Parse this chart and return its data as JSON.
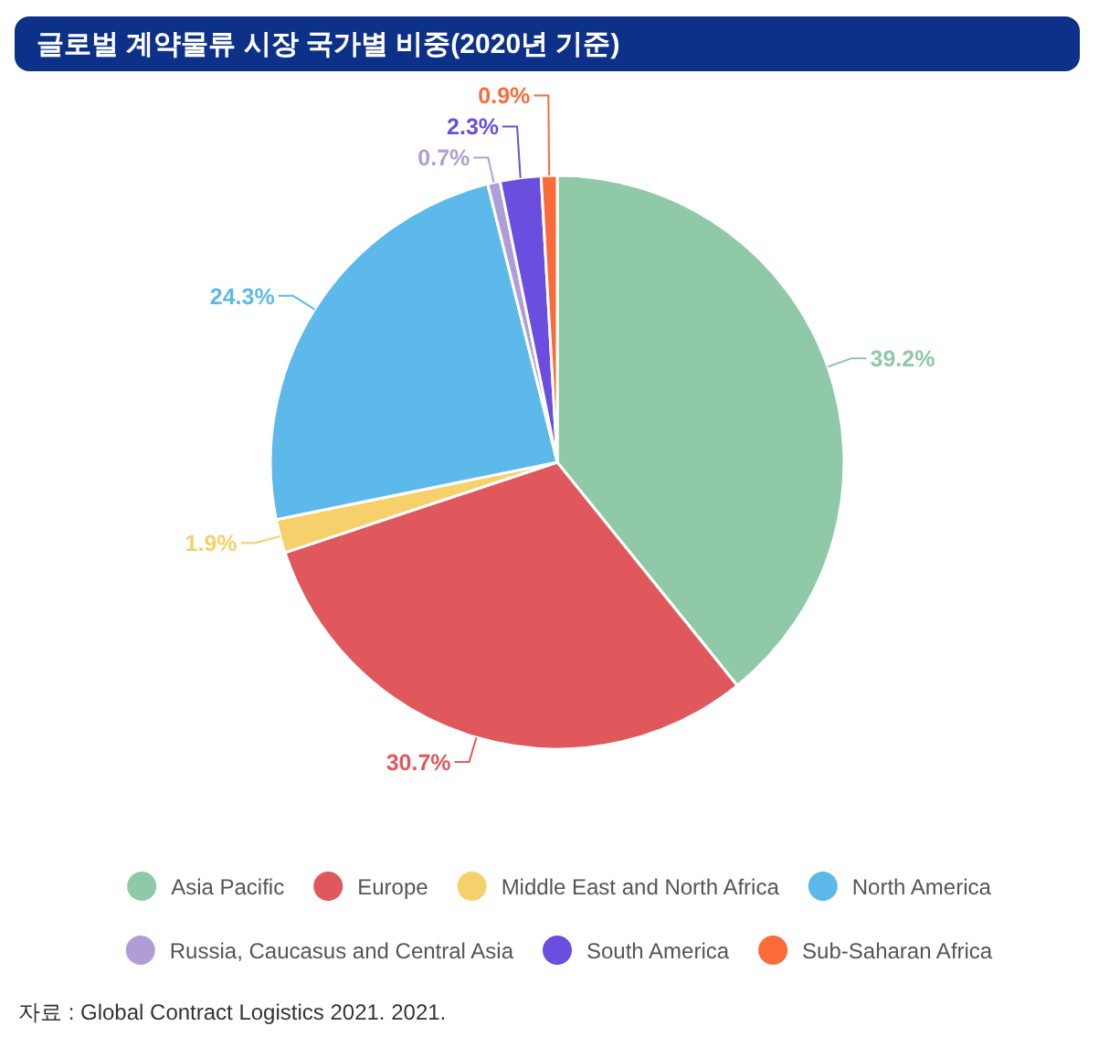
{
  "chart_data": {
    "type": "pie",
    "title": "글로벌 계약물류 시장 국가별 비중(2020년 기준)",
    "categories": [
      "Asia Pacific",
      "Europe",
      "Middle East and North Africa",
      "North America",
      "Russia, Caucasus and Central Asia",
      "South America",
      "Sub-Saharan Africa"
    ],
    "values": [
      39.2,
      30.7,
      1.9,
      24.3,
      0.7,
      2.3,
      0.9
    ],
    "colors": [
      "#8fc9a8",
      "#e1585c",
      "#f5d06b",
      "#5db9e9",
      "#b09dd8",
      "#6b4de0",
      "#fb6b3a"
    ],
    "value_labels": [
      "39.2%",
      "30.7%",
      "1.9%",
      "24.3%",
      "0.7%",
      "2.3%",
      "0.9%"
    ],
    "legend": "bottom",
    "annotations": [
      "자료 : Global Contract Logistics 2021. 2021."
    ]
  }
}
